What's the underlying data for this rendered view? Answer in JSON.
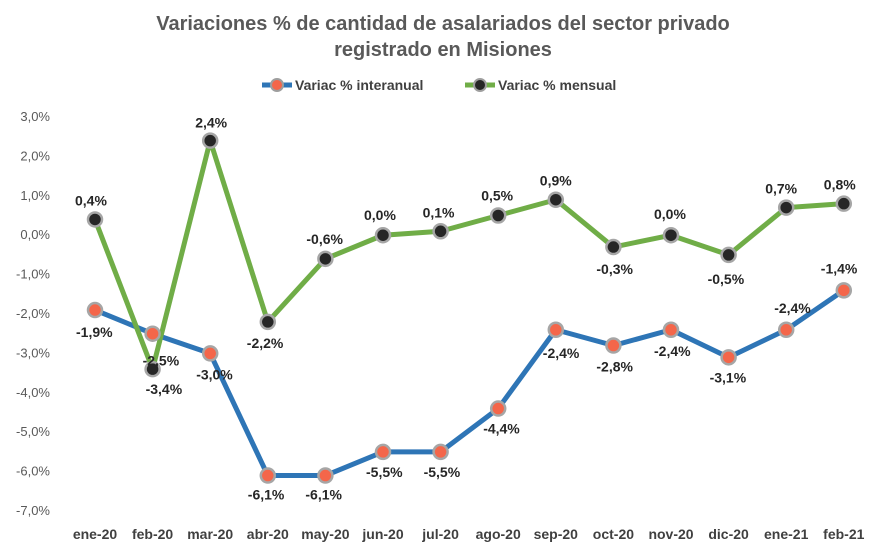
{
  "chart_data": {
    "type": "line",
    "title_line1": "Variaciones % de cantidad de asalariados del sector privado",
    "title_line2": "registrado en Misiones",
    "categories": [
      "ene-20",
      "feb-20",
      "mar-20",
      "abr-20",
      "may-20",
      "jun-20",
      "jul-20",
      "ago-20",
      "sep-20",
      "oct-20",
      "nov-20",
      "dic-20",
      "ene-21",
      "feb-21"
    ],
    "ylim": [
      -7.0,
      3.0
    ],
    "yticks": [
      "3,0%",
      "2,0%",
      "1,0%",
      "0,0%",
      "-1,0%",
      "-2,0%",
      "-3,0%",
      "-4,0%",
      "-5,0%",
      "-6,0%",
      "-7,0%"
    ],
    "grid": false,
    "legend_position": "top",
    "series": [
      {
        "name": "Variac % interanual",
        "color": "#2E75B6",
        "marker_fill": "#F4664A",
        "values": [
          -1.9,
          -2.5,
          -3.0,
          -6.1,
          -6.1,
          -5.5,
          -5.5,
          -4.4,
          -2.4,
          -2.8,
          -2.4,
          -3.1,
          -2.4,
          -1.4
        ],
        "labels": [
          "-1,9%",
          "-2,5%",
          "-3,0%",
          "-6,1%",
          "-6,1%",
          "-5,5%",
          "-5,5%",
          "-4,4%",
          "-2,4%",
          "-2,8%",
          "-2,4%",
          "-3,1%",
          "-2,4%",
          "-1,4%"
        ]
      },
      {
        "name": "Variac % mensual",
        "color": "#70AD47",
        "marker_fill": "#262626",
        "values": [
          0.4,
          -3.4,
          2.4,
          -2.2,
          -0.6,
          0.0,
          0.1,
          0.5,
          0.9,
          -0.3,
          0.0,
          -0.5,
          0.7,
          0.8
        ],
        "labels": [
          "0,4%",
          "-3,4%",
          "2,4%",
          "-2,2%",
          "-0,6%",
          "0,0%",
          "0,1%",
          "0,5%",
          "0,9%",
          "-0,3%",
          "0,0%",
          "-0,5%",
          "0,7%",
          "0,8%"
        ]
      }
    ]
  }
}
